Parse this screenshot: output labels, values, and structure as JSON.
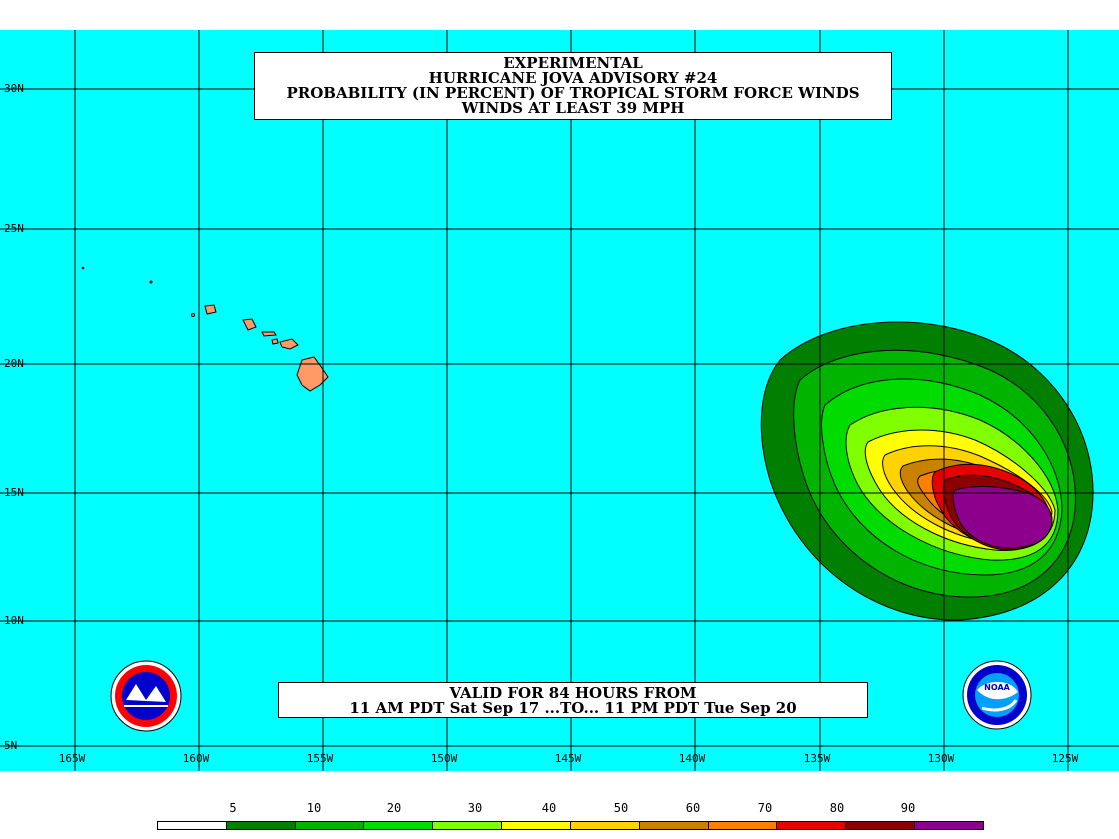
{
  "title_lines": [
    "EXPERIMENTAL",
    "HURRICANE JOVA ADVISORY #24",
    "PROBABILITY (IN PERCENT) OF TROPICAL STORM FORCE WINDS",
    "WINDS AT LEAST 39 MPH"
  ],
  "valid_lines": [
    "VALID FOR 84 HOURS FROM",
    "11 AM PDT Sat Sep 17 ...TO... 11 PM PDT Tue Sep 20"
  ],
  "lat_labels": [
    "30N",
    "25N",
    "20N",
    "15N",
    "10N",
    "5N"
  ],
  "lon_labels": [
    "165W",
    "160W",
    "155W",
    "150W",
    "145W",
    "140W",
    "135W",
    "130W",
    "125W"
  ],
  "legend": {
    "labels": [
      "5",
      "10",
      "20",
      "30",
      "40",
      "50",
      "60",
      "70",
      "80",
      "90"
    ],
    "colors": [
      "#ffffff",
      "#007f00",
      "#00b400",
      "#00dc00",
      "#7fff00",
      "#ffff00",
      "#ffd200",
      "#c88200",
      "#ff7f00",
      "#e60000",
      "#8c0000",
      "#8c008c"
    ]
  },
  "colors": {
    "ocean": "#00ffff",
    "land": "#ff9966",
    "grid": "#000000"
  },
  "logos": {
    "left": "NWS national weather service seal",
    "right": "NOAA logo"
  }
}
